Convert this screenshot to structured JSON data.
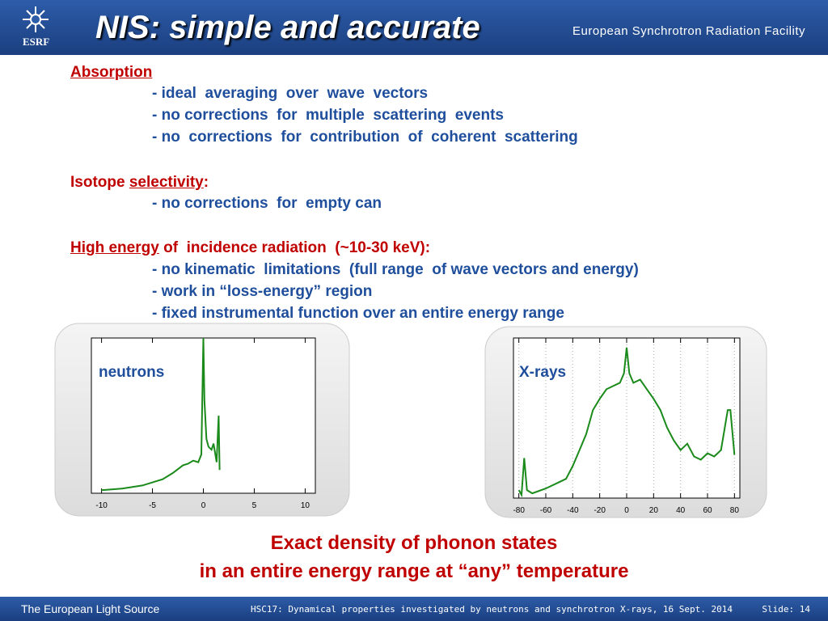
{
  "header": {
    "logo": "ESRF",
    "title": "NIS:  simple and accurate",
    "organization": "European Synchrotron Radiation Facility"
  },
  "sections": [
    {
      "heading": [
        "Absorption"
      ],
      "items": [
        "- ideal  averaging  over  wave  vectors",
        "- no corrections  for  multiple  scattering  events",
        "- no  corrections  for  contribution  of  coherent  scattering"
      ]
    },
    {
      "heading": [
        "Isotope",
        "selectivity",
        ":"
      ],
      "items": [
        "- no corrections  for  empty can"
      ]
    },
    {
      "heading": [
        "High energy",
        "of  incidence radiation  (~10-30 keV):"
      ],
      "items": [
        "- no kinematic  limitations  (full range  of wave vectors and energy)",
        "- work in “loss-energy” region",
        "- fixed instrumental function over an entire energy range"
      ]
    }
  ],
  "charts": [
    {
      "type": "line",
      "label": "neutrons",
      "color": "#1a8a1a",
      "xlim": [
        -11,
        11
      ],
      "xticks": [
        -10,
        -5,
        0,
        5,
        10
      ],
      "ylim": [
        0,
        100
      ],
      "grid": false,
      "x": [
        -10,
        -8,
        -6,
        -4,
        -3,
        -2,
        -1.5,
        -1,
        -0.5,
        -0.2,
        0,
        0.1,
        0.3,
        0.5,
        0.8,
        1,
        1.3,
        1.5,
        1.6
      ],
      "values": [
        2,
        3,
        5,
        9,
        13,
        18,
        19,
        21,
        20,
        25,
        100,
        60,
        35,
        30,
        28,
        32,
        20,
        50,
        15
      ]
    },
    {
      "type": "line",
      "label": "X-rays",
      "color": "#1a8a1a",
      "xlim": [
        -84,
        84
      ],
      "xticks": [
        -80,
        -60,
        -40,
        -20,
        0,
        20,
        40,
        60,
        80
      ],
      "ylim": [
        0,
        100
      ],
      "grid": true,
      "x": [
        -80,
        -78,
        -76,
        -74,
        -70,
        -60,
        -50,
        -45,
        -40,
        -35,
        -30,
        -25,
        -20,
        -15,
        -10,
        -5,
        -2,
        0,
        2,
        5,
        10,
        15,
        20,
        25,
        30,
        35,
        40,
        45,
        50,
        55,
        60,
        65,
        70,
        75,
        77,
        80
      ],
      "values": [
        5,
        2,
        25,
        5,
        3,
        6,
        10,
        12,
        20,
        30,
        40,
        55,
        62,
        68,
        70,
        72,
        78,
        94,
        78,
        72,
        74,
        68,
        62,
        55,
        44,
        36,
        30,
        34,
        26,
        24,
        28,
        26,
        30,
        55,
        55,
        27
      ]
    }
  ],
  "conclusion": [
    "Exact  density  of  phonon  states",
    "in  an  entire  energy  range  at  “any”  temperature"
  ],
  "footer": {
    "left": "The European Light Source",
    "center": "HSC17: Dynamical properties investigated by neutrons and synchrotron X-rays, 16 Sept. 2014",
    "slide": "Slide: 14"
  }
}
